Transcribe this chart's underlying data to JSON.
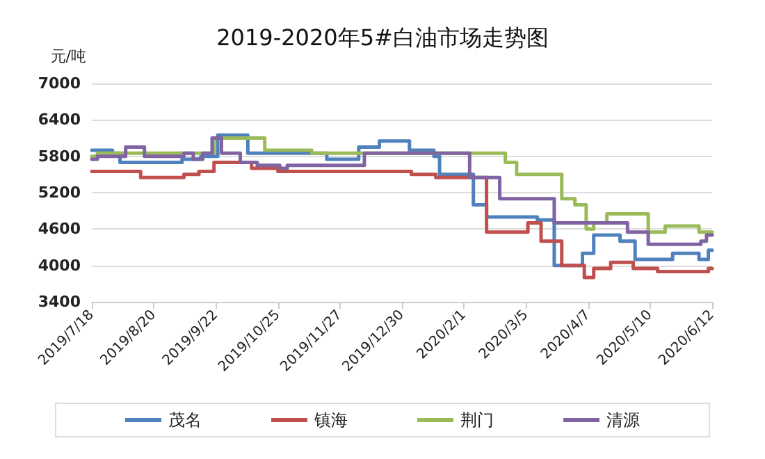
{
  "chart_data": {
    "type": "step",
    "title": "2019-2020年5#白油市场走势图",
    "ylabel": "元/吨",
    "ylim": [
      3400,
      7000
    ],
    "yticks": [
      3400,
      4000,
      4600,
      5200,
      5800,
      6400,
      7000
    ],
    "xlim": [
      "2019-07-18",
      "2020-06-12"
    ],
    "xticks": [
      {
        "value": "2019-07-18",
        "label": "2019/7/18"
      },
      {
        "value": "2019-08-20",
        "label": "2019/8/20"
      },
      {
        "value": "2019-09-22",
        "label": "2019/9/22"
      },
      {
        "value": "2019-10-25",
        "label": "2019/10/25"
      },
      {
        "value": "2019-11-27",
        "label": "2019/11/27"
      },
      {
        "value": "2019-12-30",
        "label": "2019/12/30"
      },
      {
        "value": "2020-02-01",
        "label": "2020/2/1"
      },
      {
        "value": "2020-03-05",
        "label": "2020/3/5"
      },
      {
        "value": "2020-04-07",
        "label": "2020/4/7"
      },
      {
        "value": "2020-05-10",
        "label": "2020/5/10"
      },
      {
        "value": "2020-06-12",
        "label": "2020/6/12"
      }
    ],
    "grid": "y",
    "legend": "bottom",
    "marker": "none",
    "line_style": "solid",
    "series": [
      {
        "name": "茂名",
        "color": "#4f81bd",
        "x": [
          "2019-07-18",
          "2019-07-29",
          "2019-08-02",
          "2019-09-04",
          "2019-09-14",
          "2019-09-23",
          "2019-10-09",
          "2019-11-20",
          "2019-12-07",
          "2019-12-18",
          "2020-01-03",
          "2020-01-16",
          "2020-01-19",
          "2020-02-06",
          "2020-02-13",
          "2020-03-11",
          "2020-03-20",
          "2020-04-04",
          "2020-04-10",
          "2020-04-24",
          "2020-05-02",
          "2020-05-22",
          "2020-06-05",
          "2020-06-10",
          "2020-06-12"
        ],
        "values": [
          5900,
          5850,
          5700,
          5750,
          5800,
          6150,
          5850,
          5750,
          5950,
          6050,
          5900,
          5800,
          5500,
          5000,
          4800,
          4750,
          4000,
          4200,
          4500,
          4400,
          4100,
          4200,
          4100,
          4250,
          4250
        ]
      },
      {
        "name": "镇海",
        "color": "#c0504d",
        "x": [
          "2019-07-18",
          "2019-08-13",
          "2019-09-05",
          "2019-09-13",
          "2019-09-21",
          "2019-10-11",
          "2019-10-25",
          "2020-01-04",
          "2020-01-17",
          "2020-02-13",
          "2020-03-06",
          "2020-03-13",
          "2020-03-24",
          "2020-04-05",
          "2020-04-10",
          "2020-04-19",
          "2020-05-01",
          "2020-05-14",
          "2020-06-10",
          "2020-06-12"
        ],
        "values": [
          5550,
          5450,
          5500,
          5550,
          5700,
          5600,
          5550,
          5500,
          5450,
          4550,
          4700,
          4400,
          4000,
          3800,
          3950,
          4050,
          3950,
          3900,
          3950,
          3950
        ]
      },
      {
        "name": "荆门",
        "color": "#9bbb59",
        "x": [
          "2019-07-18",
          "2019-07-21",
          "2019-09-21",
          "2019-10-18",
          "2019-11-12",
          "2020-02-23",
          "2020-02-29",
          "2020-03-24",
          "2020-03-31",
          "2020-04-06",
          "2020-04-10",
          "2020-04-17",
          "2020-05-09",
          "2020-05-18",
          "2020-06-05",
          "2020-06-12"
        ],
        "values": [
          5800,
          5850,
          6100,
          5900,
          5850,
          5700,
          5500,
          5100,
          5000,
          4600,
          4700,
          4850,
          4550,
          4650,
          4550,
          4550
        ]
      },
      {
        "name": "清源",
        "color": "#8064a2",
        "x": [
          "2019-07-18",
          "2019-07-21",
          "2019-08-05",
          "2019-08-15",
          "2019-09-05",
          "2019-09-10",
          "2019-09-15",
          "2019-09-20",
          "2019-09-25",
          "2019-10-05",
          "2019-10-14",
          "2019-10-26",
          "2019-10-30",
          "2019-12-10",
          "2020-02-04",
          "2020-02-20",
          "2020-03-20",
          "2020-04-28",
          "2020-05-09",
          "2020-06-06",
          "2020-06-09",
          "2020-06-12"
        ],
        "values": [
          5750,
          5800,
          5950,
          5800,
          5850,
          5750,
          5850,
          6100,
          5850,
          5700,
          5650,
          5600,
          5650,
          5850,
          5450,
          5100,
          4700,
          4550,
          4350,
          4400,
          4500,
          4500
        ]
      }
    ]
  }
}
